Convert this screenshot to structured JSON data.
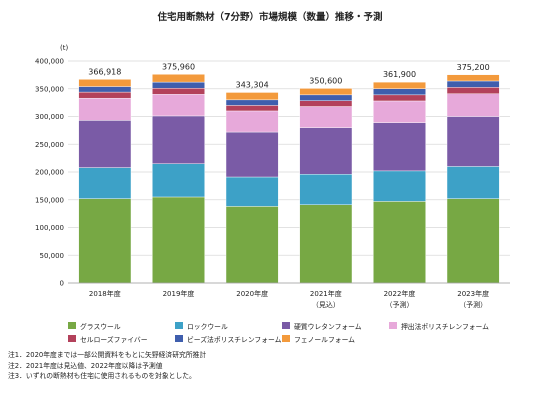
{
  "chart_data": {
    "type": "bar",
    "stacked": true,
    "title": "住宅用断熱材（7分野）市場規模（数量）推移・予測",
    "unit": "(t)",
    "ylim": [
      0,
      400000
    ],
    "yticks": [
      "0",
      "50,000",
      "100,000",
      "150,000",
      "200,000",
      "250,000",
      "300,000",
      "350,000",
      "400,000"
    ],
    "grid": true,
    "legend_position": "bottom",
    "categories": [
      {
        "year": "2018年度",
        "note": ""
      },
      {
        "year": "2019年度",
        "note": ""
      },
      {
        "year": "2020年度",
        "note": ""
      },
      {
        "year": "2021年度",
        "note": "（見込）"
      },
      {
        "year": "2022年度",
        "note": "（予測）"
      },
      {
        "year": "2023年度",
        "note": "（予測）"
      }
    ],
    "totals": [
      "366,918",
      "375,960",
      "343,304",
      "350,600",
      "361,900",
      "375,200"
    ],
    "series": [
      {
        "name": "グラスウール",
        "color": "#77A844",
        "values": [
          152000,
          155000,
          138000,
          141000,
          147000,
          152000
        ]
      },
      {
        "name": "ロックウール",
        "color": "#3DA1C7",
        "values": [
          56000,
          60000,
          53000,
          55000,
          55000,
          58000
        ]
      },
      {
        "name": "硬質ウレタンフォーム",
        "color": "#7A5BA6",
        "values": [
          85000,
          86000,
          81000,
          84000,
          87000,
          90000
        ]
      },
      {
        "name": "押出法ポリスチレンフォーム",
        "color": "#E7A9DA",
        "values": [
          40000,
          39000,
          38000,
          38000,
          39000,
          41000
        ]
      },
      {
        "name": "セルローズファイバー",
        "color": "#B3415B",
        "values": [
          11000,
          11000,
          10000,
          10500,
          11000,
          11500
        ]
      },
      {
        "name": "ビーズ法ポリスチレンフォーム",
        "color": "#3F5EAD",
        "values": [
          10000,
          11000,
          10000,
          10500,
          11000,
          11500
        ]
      },
      {
        "name": "フェノールフォーム",
        "color": "#F39A3C",
        "values": [
          12918,
          13960,
          13304,
          11600,
          11900,
          11200
        ]
      }
    ],
    "legend_rows": [
      [
        "グラスウール",
        "ロックウール",
        "硬質ウレタンフォーム",
        "押出法ポリスチレンフォーム"
      ],
      [
        "セルローズファイバー",
        "ビーズ法ポリスチレンフォーム",
        "フェノールフォーム"
      ]
    ]
  },
  "notes": [
    "注1．2020年度までは一部公開資料をもとに矢野経済研究所推計",
    "注2．2021年度は見込値、2022年度以降は予測値",
    "注3．いずれの断熱材も住宅に使用されるものを対象とした。"
  ]
}
